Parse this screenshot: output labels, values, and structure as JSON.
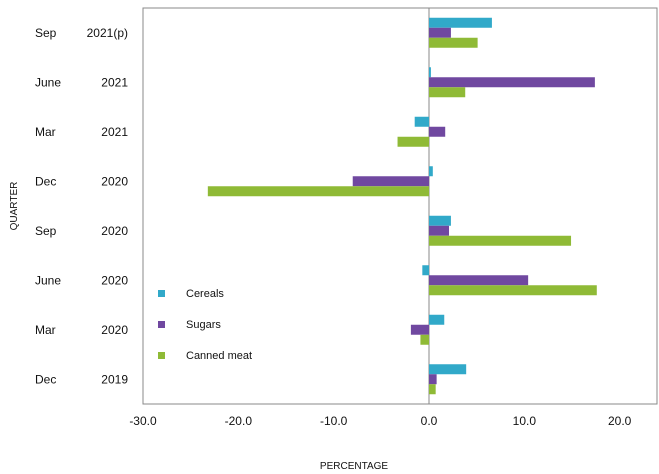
{
  "chart_data": {
    "type": "bar",
    "orientation": "horizontal",
    "categories": [
      {
        "month": "Sep",
        "year": "2021(p)"
      },
      {
        "month": "June",
        "year": "2021"
      },
      {
        "month": "Mar",
        "year": "2021"
      },
      {
        "month": "Dec",
        "year": "2020"
      },
      {
        "month": "Sep",
        "year": "2020"
      },
      {
        "month": "June",
        "year": "2020"
      },
      {
        "month": "Mar",
        "year": "2020"
      },
      {
        "month": "Dec",
        "year": "2019"
      }
    ],
    "series": [
      {
        "name": "Cereals",
        "color": "#31a9c9",
        "values": [
          6.6,
          0.2,
          -1.5,
          0.4,
          2.3,
          -0.7,
          1.6,
          3.9
        ]
      },
      {
        "name": "Sugars",
        "color": "#7048a0",
        "values": [
          2.3,
          17.4,
          1.7,
          -8.0,
          2.1,
          10.4,
          -1.9,
          0.8
        ]
      },
      {
        "name": "Canned meat",
        "color": "#8fba36",
        "values": [
          5.1,
          3.8,
          -3.3,
          -23.2,
          14.9,
          17.6,
          -0.9,
          0.7
        ]
      }
    ],
    "xlabel": "PERCENTAGE",
    "ylabel": "QUARTER",
    "xlim": [
      -30,
      20
    ],
    "xticks": [
      "-30.0",
      "-20.0",
      "-10.0",
      "0.0",
      "10.0",
      "20.0"
    ],
    "grid": false,
    "legend_position": "bottom-left inside plot"
  }
}
